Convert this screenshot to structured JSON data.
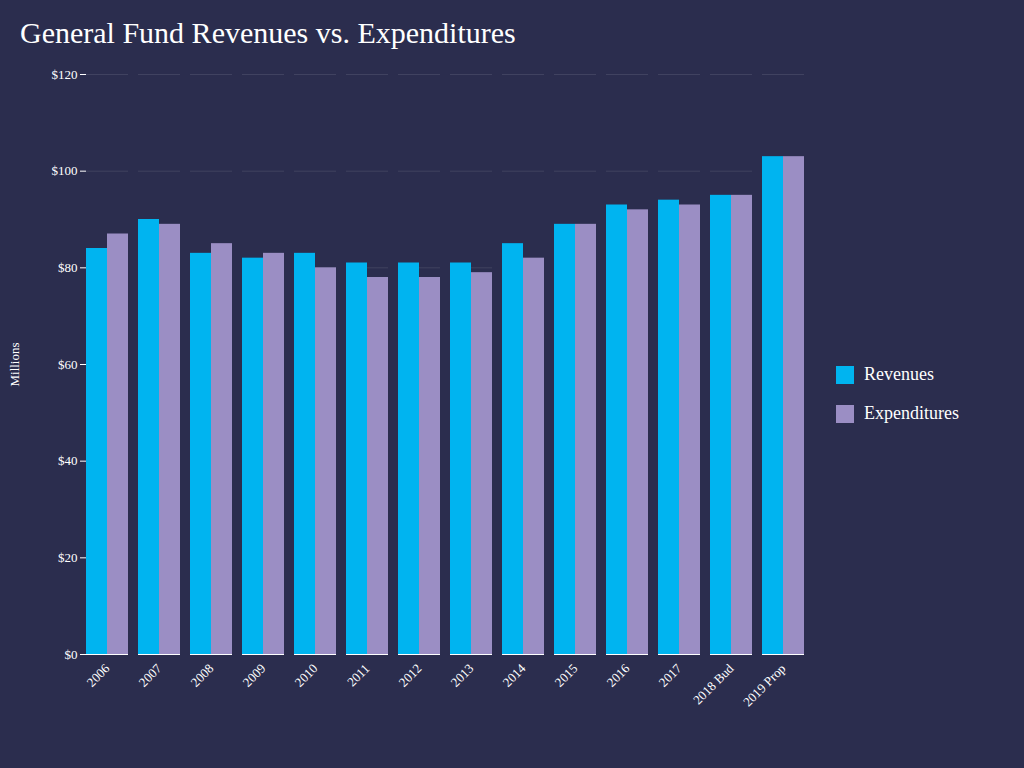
{
  "chart_data": {
    "type": "bar",
    "title": "General Fund Revenues vs. Expenditures",
    "ylabel": "Millions",
    "categories": [
      "2006",
      "2007",
      "2008",
      "2009",
      "2010",
      "2011",
      "2012",
      "2013",
      "2014",
      "2015",
      "2016",
      "2017",
      "2018 Bud",
      "2019 Prop"
    ],
    "series": [
      {
        "name": "Revenues",
        "color": "#00b4f0",
        "values": [
          84,
          90,
          83,
          82,
          83,
          81,
          81,
          81,
          85,
          89,
          93,
          94,
          95,
          103
        ]
      },
      {
        "name": "Expenditures",
        "color": "#9b8ec4",
        "values": [
          87,
          89,
          85,
          83,
          80,
          78,
          78,
          79,
          82,
          89,
          92,
          93,
          95,
          103
        ]
      }
    ],
    "ylim": [
      0,
      120
    ],
    "yticks": [
      {
        "value": 0,
        "label": "$0"
      },
      {
        "value": 20,
        "label": "$20"
      },
      {
        "value": 40,
        "label": "$40"
      },
      {
        "value": 60,
        "label": "$60"
      },
      {
        "value": 80,
        "label": "$80"
      },
      {
        "value": 100,
        "label": "$100"
      },
      {
        "value": 120,
        "label": "$120"
      }
    ],
    "grid": true,
    "legend": "right"
  }
}
